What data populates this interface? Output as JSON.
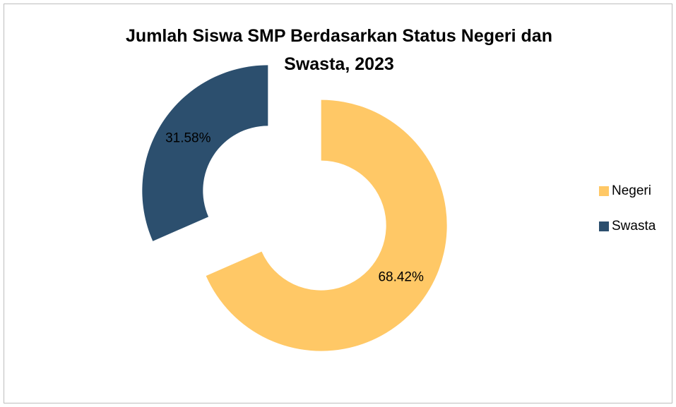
{
  "chart_data": {
    "type": "donut",
    "title": "Jumlah Siswa SMP Berdasarkan Status Negeri dan Swasta, 2023",
    "categories": [
      "Negeri",
      "Swasta"
    ],
    "values": [
      68.42,
      31.58
    ],
    "value_labels": [
      "68.42%",
      "31.58%"
    ],
    "colors": [
      "#FFC866",
      "#2C4F6E"
    ],
    "legend": "right"
  }
}
